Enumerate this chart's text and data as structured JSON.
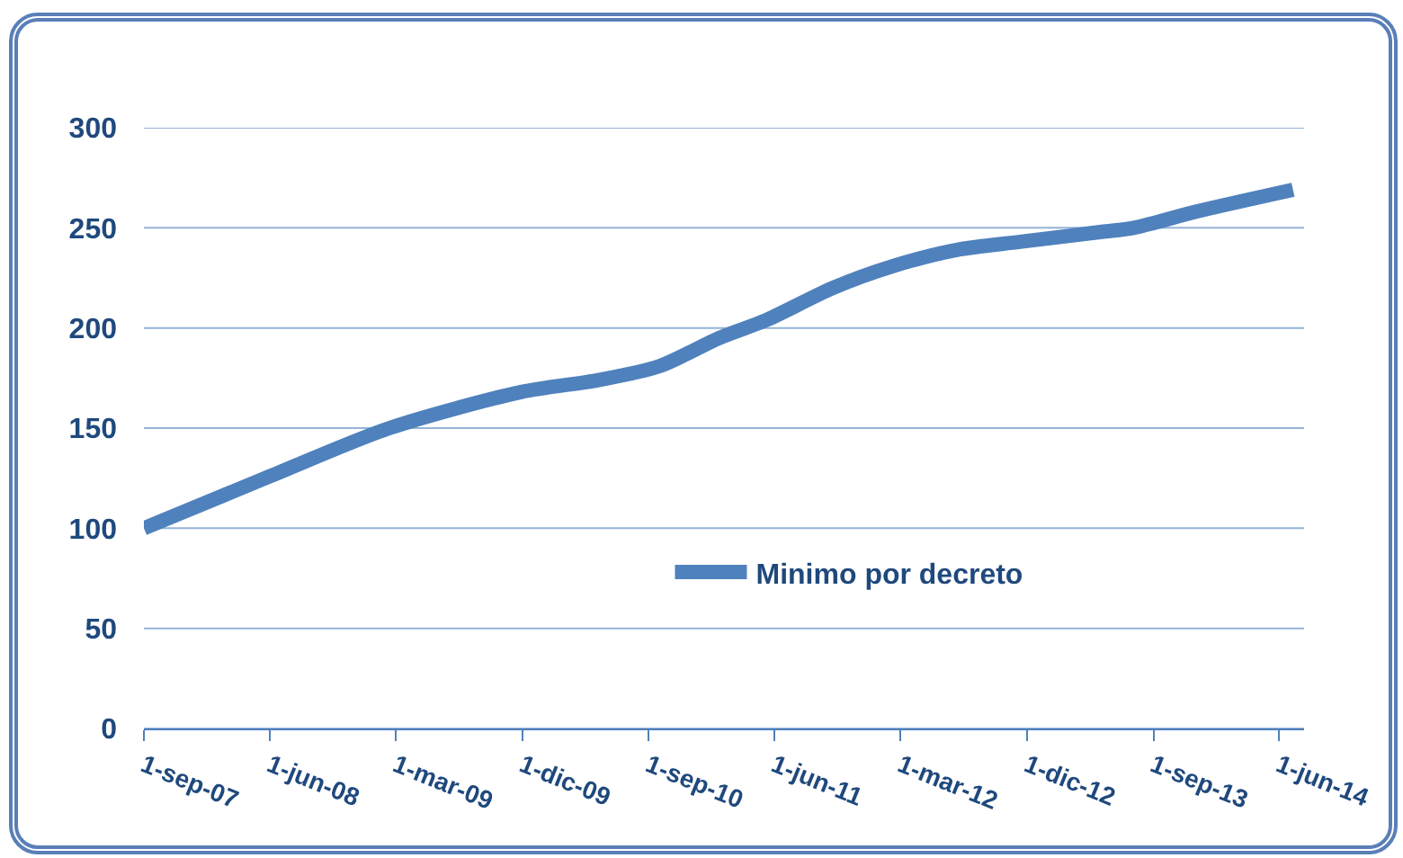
{
  "chart_data": {
    "type": "line",
    "x": [
      "2007-09-01",
      "2008-06-01",
      "2009-02-15",
      "2009-11-28",
      "2010-05-15",
      "2010-09-25",
      "2011-02-01",
      "2011-05-15",
      "2011-10-06",
      "2012-02-15",
      "2012-07-01",
      "2012-11-15",
      "2013-05-12",
      "2013-07-20",
      "2013-12-01",
      "2014-07-01"
    ],
    "series": [
      {
        "name": "Minimo por decreto",
        "color": "#4f81bd",
        "values": [
          100,
          126,
          150,
          168,
          174,
          181,
          195,
          204,
          220,
          231,
          239,
          243,
          248,
          250,
          258,
          269
        ]
      }
    ],
    "xlim": [
      "2007-09-01",
      "2014-07-25"
    ],
    "xticks": [
      {
        "value": "2007-09-01",
        "label": "1-sep-07"
      },
      {
        "value": "2008-06-01",
        "label": "1-jun-08"
      },
      {
        "value": "2009-03-01",
        "label": "1-mar-09"
      },
      {
        "value": "2009-12-01",
        "label": "1-dic-09"
      },
      {
        "value": "2010-09-01",
        "label": "1-sep-10"
      },
      {
        "value": "2011-06-01",
        "label": "1-jun-11"
      },
      {
        "value": "2012-03-01",
        "label": "1-mar-12"
      },
      {
        "value": "2012-12-01",
        "label": "1-dic-12"
      },
      {
        "value": "2013-09-01",
        "label": "1-sep-13"
      },
      {
        "value": "2014-06-01",
        "label": "1-jun-14"
      }
    ],
    "ylim": [
      0,
      300
    ],
    "yticks": [
      0,
      50,
      100,
      150,
      200,
      250,
      300
    ],
    "grid": "y",
    "legend": "bottom",
    "marker": "none",
    "line_style": "solid"
  }
}
